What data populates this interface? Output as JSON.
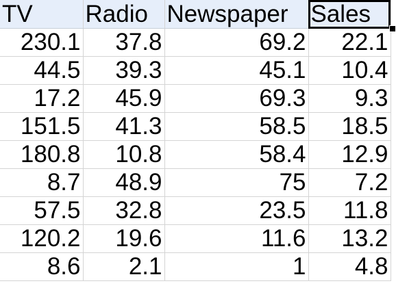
{
  "sheet": {
    "headers": [
      "TV",
      "Radio",
      "Newspaper",
      "Sales"
    ],
    "selected_header": "Sales",
    "rows": [
      [
        "230.1",
        "37.8",
        "69.2",
        "22.1"
      ],
      [
        "44.5",
        "39.3",
        "45.1",
        "10.4"
      ],
      [
        "17.2",
        "45.9",
        "69.3",
        "9.3"
      ],
      [
        "151.5",
        "41.3",
        "58.5",
        "18.5"
      ],
      [
        "180.8",
        "10.8",
        "58.4",
        "12.9"
      ],
      [
        "8.7",
        "48.9",
        "75",
        "7.2"
      ],
      [
        "57.5",
        "32.8",
        "23.5",
        "11.8"
      ],
      [
        "120.2",
        "19.6",
        "11.6",
        "13.2"
      ],
      [
        "8.6",
        "2.1",
        "1",
        "4.8"
      ]
    ]
  },
  "colors": {
    "header_bg": "#e6eefa",
    "gridline": "#d4d4d4",
    "selection": "#000000"
  }
}
